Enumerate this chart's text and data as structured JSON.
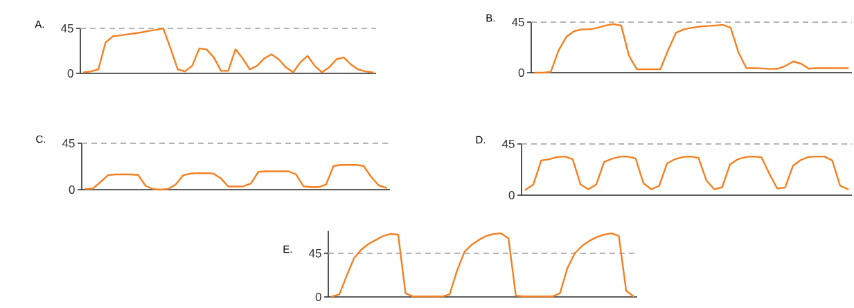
{
  "chart_data": [
    {
      "type": "line",
      "title": "A.",
      "color": "#f47f20",
      "ylim": [
        0,
        45
      ],
      "yticks": [
        0,
        45
      ],
      "ref_lines": [
        {
          "axis": "y",
          "value": 45,
          "color": "#b4b4b4",
          "line_style": "dashed"
        }
      ],
      "categories": [
        null,
        null,
        null,
        null,
        null,
        null,
        null,
        null,
        null,
        null,
        null,
        null,
        null,
        null,
        null,
        null,
        null,
        null,
        null,
        null,
        null,
        null,
        null,
        null,
        null,
        null,
        null,
        null,
        null,
        null,
        null,
        null,
        null,
        null,
        null,
        null,
        null,
        null,
        null,
        null,
        null
      ],
      "values": [
        1,
        2,
        4,
        31,
        37,
        38,
        39,
        40,
        41,
        42.5,
        43.5,
        45,
        25,
        4,
        2,
        7.5,
        25,
        24,
        16,
        2.5,
        2.5,
        24,
        15,
        4,
        7.5,
        15,
        19,
        14,
        6,
        1,
        11,
        17.5,
        7.5,
        1,
        6,
        14,
        16,
        9,
        4,
        2,
        1
      ]
    },
    {
      "type": "line",
      "title": "B.",
      "color": "#f47f20",
      "ylim": [
        0,
        45
      ],
      "yticks": [
        0,
        45
      ],
      "ref_lines": [
        {
          "axis": "y",
          "value": 45,
          "color": "#b4b4b4",
          "line_style": "dashed"
        }
      ],
      "categories": [
        null,
        null,
        null,
        null,
        null,
        null,
        null,
        null,
        null,
        null,
        null,
        null,
        null,
        null,
        null,
        null,
        null,
        null,
        null,
        null,
        null,
        null,
        null,
        null,
        null,
        null,
        null,
        null,
        null,
        null,
        null,
        null,
        null,
        null,
        null,
        null,
        null,
        null,
        null,
        null,
        null
      ],
      "values": [
        0,
        0,
        0.7,
        20,
        32,
        37,
        38.6,
        38.6,
        40,
        42,
        43.3,
        42,
        15,
        3,
        3,
        3,
        3,
        20,
        35.5,
        38.6,
        40,
        41,
        41.5,
        42,
        42.6,
        40,
        18,
        4,
        4,
        3.8,
        3.3,
        3.5,
        6,
        10,
        8,
        3.5,
        4,
        4,
        4,
        4,
        4
      ]
    },
    {
      "type": "line",
      "title": "C.",
      "color": "#f47f20",
      "ylim": [
        0,
        45
      ],
      "yticks": [
        0,
        45
      ],
      "ref_lines": [
        {
          "axis": "y",
          "value": 45,
          "color": "#b4b4b4",
          "line_style": "dashed"
        }
      ],
      "categories": [
        null,
        null,
        null,
        null,
        null,
        null,
        null,
        null,
        null,
        null,
        null,
        null,
        null,
        null,
        null,
        null,
        null,
        null,
        null,
        null,
        null,
        null,
        null,
        null,
        null,
        null,
        null,
        null,
        null,
        null,
        null,
        null,
        null,
        null,
        null,
        null,
        null,
        null,
        null,
        null,
        null
      ],
      "values": [
        0.7,
        1.2,
        7.4,
        14,
        14.8,
        14.8,
        14.8,
        14.3,
        3.7,
        0.5,
        0,
        0.7,
        5,
        14,
        15.6,
        16,
        16,
        15.6,
        11,
        3,
        3,
        3.2,
        6,
        17.3,
        17.8,
        17.8,
        17.8,
        17.8,
        14.8,
        3.2,
        2.5,
        2.5,
        5,
        23,
        24,
        24,
        24,
        23,
        12.4,
        4.2,
        1.7
      ]
    },
    {
      "type": "line",
      "title": "D.",
      "color": "#f47f20",
      "ylim": [
        0,
        45
      ],
      "yticks": [
        0,
        45
      ],
      "ref_lines": [
        {
          "axis": "y",
          "value": 45,
          "color": "#b4b4b4",
          "line_style": "dashed"
        }
      ],
      "categories": [
        null,
        null,
        null,
        null,
        null,
        null,
        null,
        null,
        null,
        null,
        null,
        null,
        null,
        null,
        null,
        null,
        null,
        null,
        null,
        null,
        null,
        null,
        null,
        null,
        null,
        null,
        null,
        null,
        null,
        null,
        null,
        null,
        null,
        null,
        null,
        null,
        null,
        null,
        null,
        null,
        null,
        null
      ],
      "values": [
        4.7,
        9.4,
        30.5,
        31.6,
        33.5,
        34,
        31.6,
        9.4,
        5.2,
        9.4,
        29.3,
        32,
        33.8,
        34,
        32.3,
        10.5,
        5.2,
        8.2,
        28,
        31.6,
        33.5,
        34,
        32.8,
        12.9,
        5.2,
        7,
        27,
        31.6,
        33.5,
        34,
        33.3,
        18.8,
        5.9,
        6.6,
        25.8,
        30.9,
        33.5,
        34,
        34,
        30.5,
        8.2,
        5.2
      ]
    },
    {
      "type": "line",
      "title": "E.",
      "color": "#f47f20",
      "ylim": [
        0,
        68
      ],
      "yticks": [
        0,
        45
      ],
      "ref_lines": [
        {
          "axis": "y",
          "value": 45,
          "color": "#b4b4b4",
          "line_style": "dashed"
        }
      ],
      "categories": [
        null,
        null,
        null,
        null,
        null,
        null,
        null,
        null,
        null,
        null,
        null,
        null,
        null,
        null,
        null,
        null,
        null,
        null,
        null,
        null,
        null,
        null,
        null,
        null,
        null,
        null,
        null,
        null,
        null,
        null,
        null,
        null,
        null,
        null,
        null,
        null,
        null,
        null,
        null,
        null,
        null,
        null
      ],
      "values": [
        0.5,
        2.6,
        21.9,
        40,
        48.9,
        54.8,
        59,
        63,
        65,
        64.3,
        3.9,
        0.5,
        0.5,
        0.5,
        0.5,
        0.5,
        2.6,
        27,
        46.3,
        54,
        59,
        63,
        65,
        65.6,
        60.4,
        1.3,
        0.5,
        0.5,
        0.5,
        0.5,
        0.5,
        3.9,
        29.6,
        45,
        52.7,
        57.9,
        61.7,
        64.3,
        65.6,
        63,
        6.4,
        0.5
      ]
    }
  ]
}
